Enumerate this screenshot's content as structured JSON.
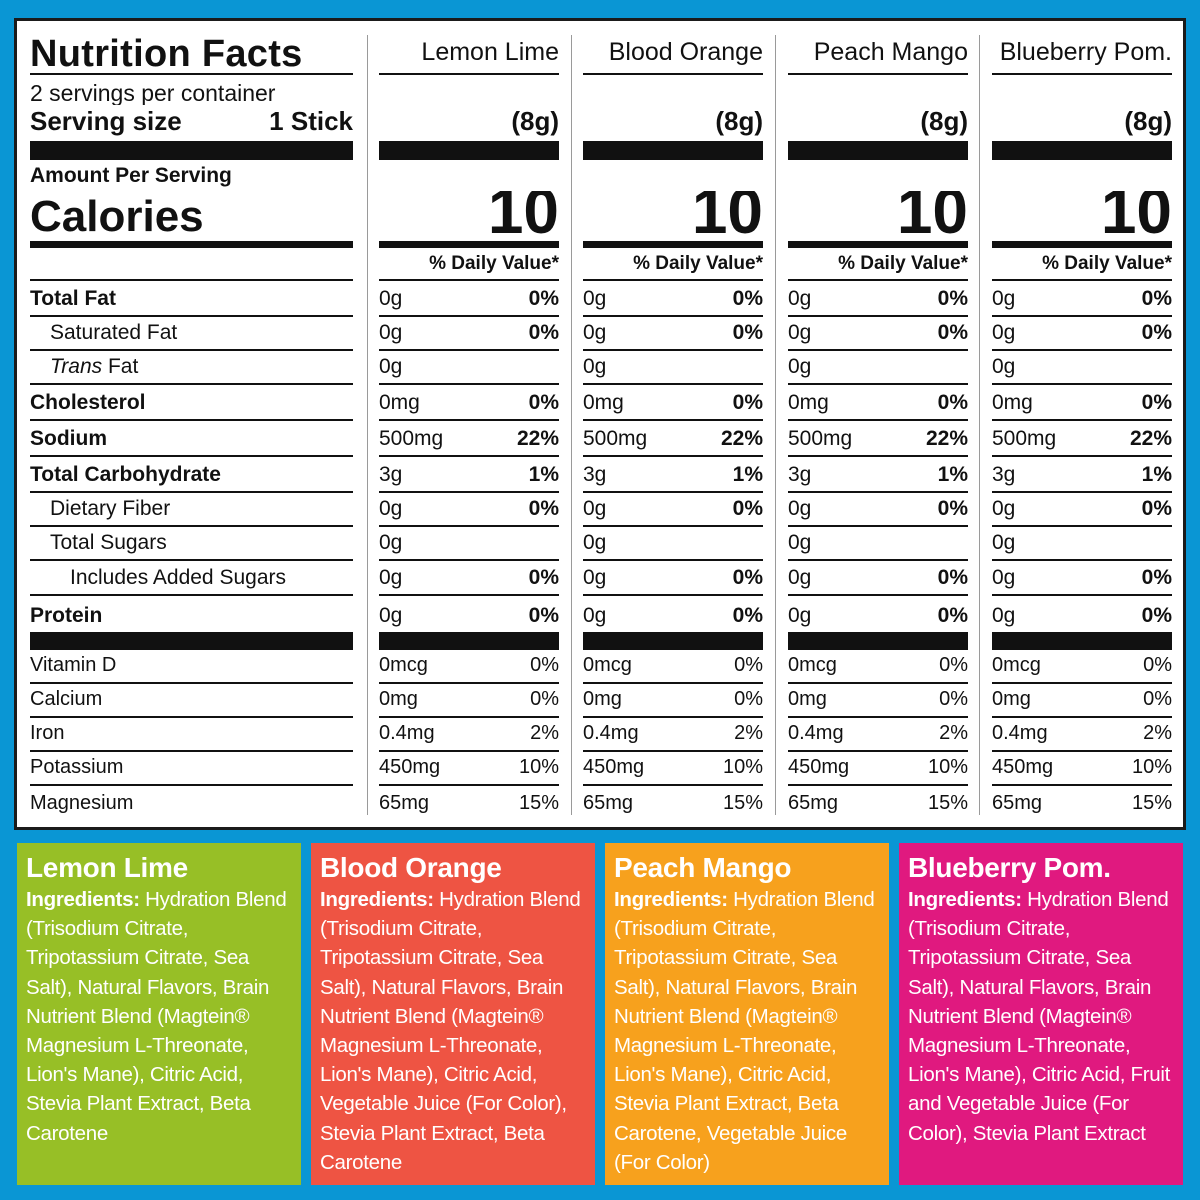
{
  "label": {
    "title": "Nutrition Facts",
    "servings_per_container": "2 servings per container",
    "serving_size_label": "Serving size",
    "serving_size_value": "1 Stick",
    "amount_per_serving": "Amount Per Serving",
    "calories_label": "Calories",
    "daily_value_header": "% Daily Value*"
  },
  "nutrients": [
    {
      "label": "Total Fat",
      "bold": true,
      "indent": 0,
      "h": 36
    },
    {
      "label": "Saturated Fat",
      "bold": false,
      "indent": 1,
      "h": 34
    },
    {
      "label_italic": "Trans",
      "label": " Fat",
      "bold": false,
      "indent": 1,
      "h": 34
    },
    {
      "label": "Cholesterol",
      "bold": true,
      "indent": 0,
      "h": 36
    },
    {
      "label": "Sodium",
      "bold": true,
      "indent": 0,
      "h": 36
    },
    {
      "label": "Total Carbohydrate",
      "bold": true,
      "indent": 0,
      "h": 36
    },
    {
      "label": "Dietary Fiber",
      "bold": false,
      "indent": 1,
      "h": 34
    },
    {
      "label": "Total Sugars",
      "bold": false,
      "indent": 1,
      "h": 34
    },
    {
      "label": "Includes Added Sugars",
      "bold": false,
      "indent": 2,
      "h": 35
    },
    {
      "label": "Protein",
      "bold": true,
      "indent": 0,
      "h": 36
    }
  ],
  "vitamins": [
    "Vitamin D",
    "Calcium",
    "Iron",
    "Potassium",
    "Magnesium"
  ],
  "flavors": [
    {
      "name": "Lemon Lime",
      "serving": "(8g)",
      "calories": "10",
      "nutrients": [
        [
          "0g",
          "0%"
        ],
        [
          "0g",
          "0%"
        ],
        [
          "0g",
          ""
        ],
        [
          "0mg",
          "0%"
        ],
        [
          "500mg",
          "22%"
        ],
        [
          "3g",
          "1%"
        ],
        [
          "0g",
          "0%"
        ],
        [
          "0g",
          ""
        ],
        [
          "0g",
          "0%"
        ],
        [
          "0g",
          "0%"
        ]
      ],
      "vitamins": [
        [
          "0mcg",
          "0%"
        ],
        [
          "0mg",
          "0%"
        ],
        [
          "0.4mg",
          "2%"
        ],
        [
          "450mg",
          "10%"
        ],
        [
          "65mg",
          "15%"
        ]
      ]
    },
    {
      "name": "Blood Orange",
      "serving": "(8g)",
      "calories": "10",
      "nutrients": [
        [
          "0g",
          "0%"
        ],
        [
          "0g",
          "0%"
        ],
        [
          "0g",
          ""
        ],
        [
          "0mg",
          "0%"
        ],
        [
          "500mg",
          "22%"
        ],
        [
          "3g",
          "1%"
        ],
        [
          "0g",
          "0%"
        ],
        [
          "0g",
          ""
        ],
        [
          "0g",
          "0%"
        ],
        [
          "0g",
          "0%"
        ]
      ],
      "vitamins": [
        [
          "0mcg",
          "0%"
        ],
        [
          "0mg",
          "0%"
        ],
        [
          "0.4mg",
          "2%"
        ],
        [
          "450mg",
          "10%"
        ],
        [
          "65mg",
          "15%"
        ]
      ]
    },
    {
      "name": "Peach Mango",
      "serving": "(8g)",
      "calories": "10",
      "nutrients": [
        [
          "0g",
          "0%"
        ],
        [
          "0g",
          "0%"
        ],
        [
          "0g",
          ""
        ],
        [
          "0mg",
          "0%"
        ],
        [
          "500mg",
          "22%"
        ],
        [
          "3g",
          "1%"
        ],
        [
          "0g",
          "0%"
        ],
        [
          "0g",
          ""
        ],
        [
          "0g",
          "0%"
        ],
        [
          "0g",
          "0%"
        ]
      ],
      "vitamins": [
        [
          "0mcg",
          "0%"
        ],
        [
          "0mg",
          "0%"
        ],
        [
          "0.4mg",
          "2%"
        ],
        [
          "450mg",
          "10%"
        ],
        [
          "65mg",
          "15%"
        ]
      ]
    },
    {
      "name": "Blueberry Pom.",
      "serving": "(8g)",
      "calories": "10",
      "nutrients": [
        [
          "0g",
          "0%"
        ],
        [
          "0g",
          "0%"
        ],
        [
          "0g",
          ""
        ],
        [
          "0mg",
          "0%"
        ],
        [
          "500mg",
          "22%"
        ],
        [
          "3g",
          "1%"
        ],
        [
          "0g",
          "0%"
        ],
        [
          "0g",
          ""
        ],
        [
          "0g",
          "0%"
        ],
        [
          "0g",
          "0%"
        ]
      ],
      "vitamins": [
        [
          "0mcg",
          "0%"
        ],
        [
          "0mg",
          "0%"
        ],
        [
          "0.4mg",
          "2%"
        ],
        [
          "450mg",
          "10%"
        ],
        [
          "65mg",
          "15%"
        ]
      ]
    }
  ],
  "ingredients": [
    {
      "name": "Lemon Lime",
      "color": "#97bf26",
      "label": "Ingredients:",
      "text": " Hydration Blend (Trisodium Citrate, Tripotassium Citrate, Sea Salt), Natural Flavors, Brain Nutrient Blend (Magtein® Magnesium L-Threonate, Lion's Mane), Citric Acid, Stevia Plant Extract, Beta Carotene"
    },
    {
      "name": "Blood Orange",
      "color": "#ee5443",
      "label": "Ingredients:",
      "text": " Hydration Blend (Trisodium Citrate, Tripotassium Citrate, Sea Salt), Natural Flavors, Brain Nutrient Blend (Magtein® Magnesium L-Threonate, Lion's Mane), Citric Acid, Vegetable Juice (For Color), Stevia Plant Extract, Beta Carotene"
    },
    {
      "name": "Peach Mango",
      "color": "#f7a11d",
      "label": "Ingredients:",
      "text": " Hydration Blend (Trisodium Citrate, Tripotassium Citrate, Sea Salt), Natural Flavors, Brain Nutrient Blend (Magtein® Magnesium L-Threonate, Lion's Mane), Citric Acid, Stevia Plant Extract, Beta Carotene, Vegetable Juice (For Color)"
    },
    {
      "name": "Blueberry Pom.",
      "color": "#e0197f",
      "label": "Ingredients:",
      "text": " Hydration Blend (Trisodium Citrate, Tripotassium Citrate, Sea Salt), Natural Flavors, Brain Nutrient Blend (Magtein® Magnesium L-Threonate, Lion's Mane), Citric Acid, Fruit and Vegetable Juice (For Color), Stevia Plant Extract"
    }
  ],
  "colors": {
    "background": "#0a96d4",
    "panel": "#ffffff",
    "ink": "#111111"
  }
}
